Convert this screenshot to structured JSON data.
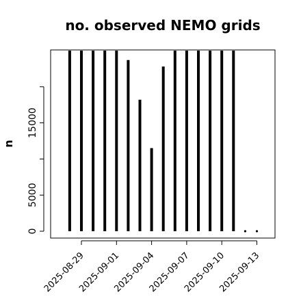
{
  "chart_data": {
    "type": "bar",
    "title": "no. observed NEMO grids",
    "xlabel": "",
    "ylabel": "n",
    "x_tick_labels": [
      "2025-08-29",
      "2025-09-01",
      "2025-09-04",
      "2025-09-07",
      "2025-09-10",
      "2025-09-13"
    ],
    "x_ticks_day": [
      0,
      3,
      6,
      9,
      12,
      15
    ],
    "y_ticks": [
      0,
      5000,
      15000
    ],
    "y_minor_ticks": [
      10000,
      20000
    ],
    "ylim": [
      0,
      25000
    ],
    "series": [
      {
        "x_day": [
          -1,
          0,
          1,
          2,
          3,
          4,
          5,
          6,
          7,
          8,
          9,
          10,
          11,
          12,
          13,
          14,
          15
        ],
        "x_dates": [
          "2025-08-28",
          "2025-08-29",
          "2025-08-30",
          "2025-08-31",
          "2025-09-01",
          "2025-09-02",
          "2025-09-03",
          "2025-09-04",
          "2025-09-05",
          "2025-09-06",
          "2025-09-07",
          "2025-09-08",
          "2025-09-09",
          "2025-09-10",
          "2025-09-11",
          "2025-09-12",
          "2025-09-13"
        ],
        "values": [
          25000,
          25000,
          25000,
          25000,
          25000,
          23700,
          18200,
          11500,
          22800,
          25000,
          25000,
          25000,
          25000,
          25000,
          25000,
          0,
          0
        ]
      }
    ],
    "grid": false,
    "colors": {
      "bar": "#000000",
      "axis": "#000000"
    }
  }
}
